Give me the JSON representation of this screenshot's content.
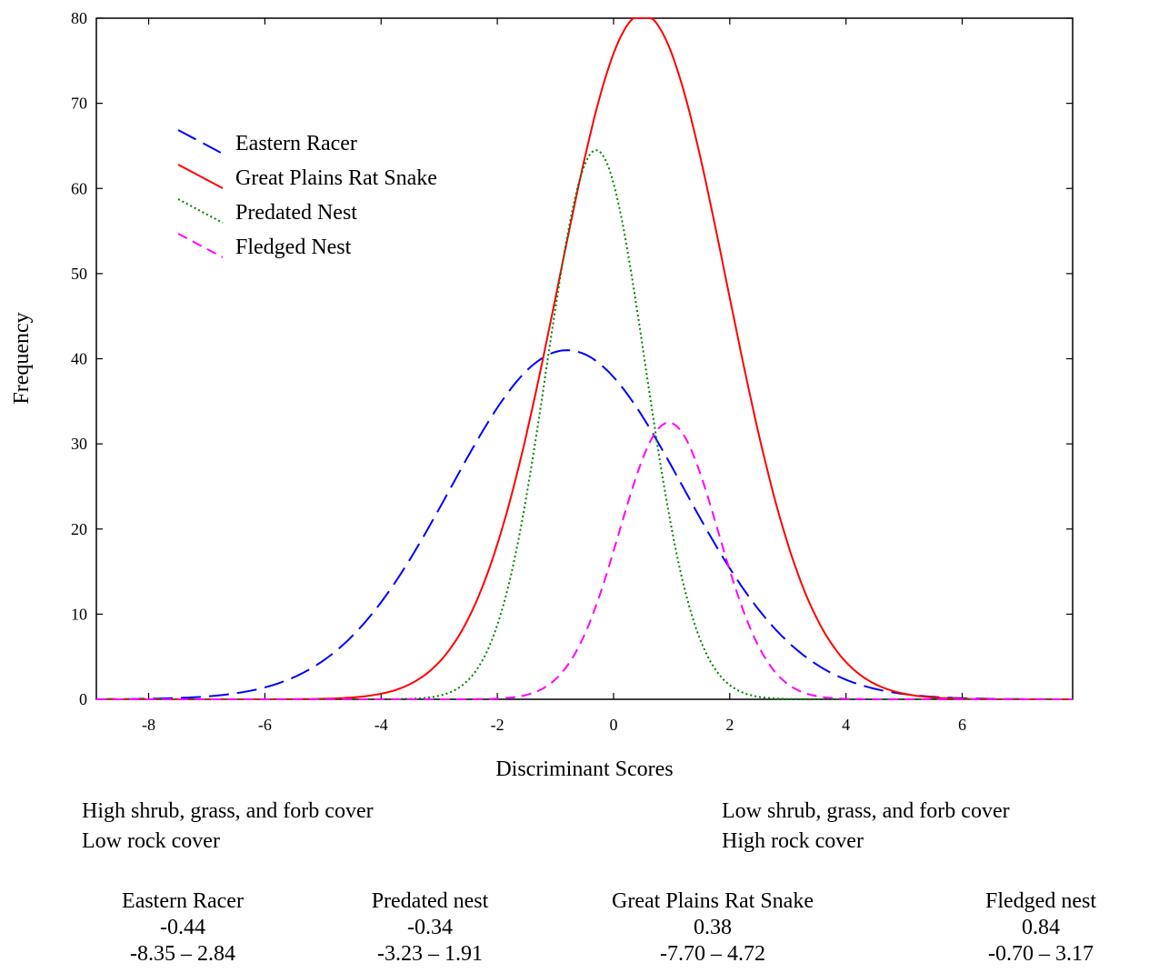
{
  "chart_data": {
    "type": "line",
    "xlabel": "Discriminant Scores",
    "ylabel": "Frequency",
    "xlim": [
      -8.9,
      7.9
    ],
    "ylim": [
      0,
      80
    ],
    "x_ticks": [
      -8,
      -6,
      -4,
      -2,
      0,
      2,
      4,
      6
    ],
    "y_ticks": [
      0,
      10,
      20,
      30,
      40,
      50,
      60,
      70,
      80
    ],
    "legend_position": "top-left",
    "series": [
      {
        "name": "Eastern Racer",
        "color": "#0000ff",
        "dash": "long-dash",
        "curve": "normal",
        "peak_x": -0.8,
        "peak_y": 41,
        "sd": 2.0
      },
      {
        "name": "Great Plains Rat Snake",
        "color": "#ff0000",
        "dash": "solid",
        "curve": "normal",
        "peak_x": 0.5,
        "peak_y": 80.5,
        "sd": 1.45
      },
      {
        "name": "Predated Nest",
        "color": "#008000",
        "dash": "dotted",
        "curve": "normal",
        "peak_x": -0.3,
        "peak_y": 64.5,
        "sd": 0.85
      },
      {
        "name": "Fledged Nest",
        "color": "#ff00ff",
        "dash": "short-dash",
        "curve": "normal",
        "peak_x": 0.95,
        "peak_y": 32.5,
        "sd": 0.85
      }
    ]
  },
  "annotations": {
    "left": [
      "High shrub, grass, and forb cover",
      "Low rock cover"
    ],
    "right": [
      "Low shrub, grass, and forb cover",
      "High rock cover"
    ]
  },
  "stats": [
    {
      "name": "Eastern Racer",
      "mean": "-0.44",
      "range": "-8.35 – 2.84"
    },
    {
      "name": "Predated nest",
      "mean": "-0.34",
      "range": "-3.23 – 1.91"
    },
    {
      "name": "Great Plains Rat Snake",
      "mean": "0.38",
      "range": "-7.70 – 4.72"
    },
    {
      "name": "Fledged nest",
      "mean": "0.84",
      "range": "-0.70 – 3.17"
    }
  ]
}
